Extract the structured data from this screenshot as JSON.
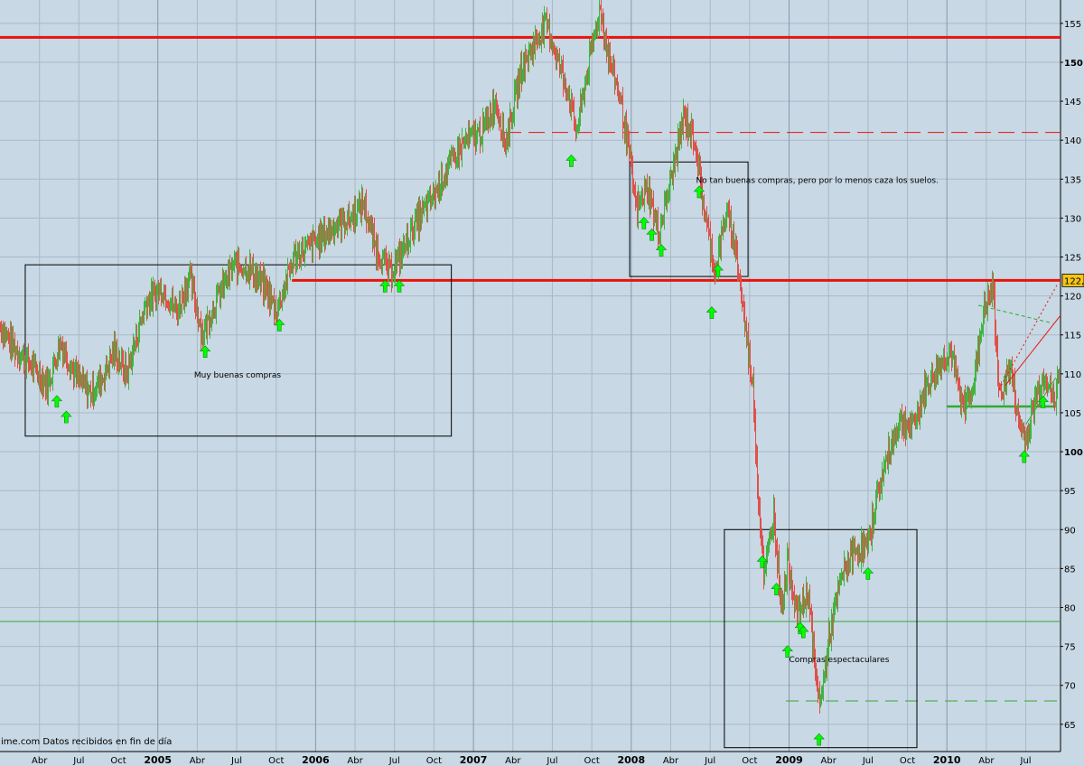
{
  "source_note": "ime.com Datos recibidos en fin de día",
  "colors": {
    "background": "#c8d8e4",
    "grid": "#a9b9c7",
    "up": "#3fb53f",
    "down": "#e0504a",
    "resistance": "#e8140c",
    "support_line": "#33a833",
    "marker": "#00ff00",
    "box": "#000000",
    "price_tag_bg": "#f5c518"
  },
  "chart_data": {
    "type": "line",
    "title": "",
    "xlabel": "",
    "ylabel": "",
    "ylim": [
      61.5,
      158
    ],
    "y_ticks": [
      65,
      70,
      75,
      80,
      85,
      90,
      95,
      100,
      105,
      110,
      115,
      120,
      125,
      130,
      135,
      140,
      145,
      150,
      155
    ],
    "x_ticks": [
      {
        "label": "Abr",
        "t": 2004.25,
        "bold": false
      },
      {
        "label": "Jul",
        "t": 2004.5,
        "bold": false
      },
      {
        "label": "Oct",
        "t": 2004.75,
        "bold": false
      },
      {
        "label": "2005",
        "t": 2005.0,
        "bold": true
      },
      {
        "label": "Abr",
        "t": 2005.25,
        "bold": false
      },
      {
        "label": "Jul",
        "t": 2005.5,
        "bold": false
      },
      {
        "label": "Oct",
        "t": 2005.75,
        "bold": false
      },
      {
        "label": "2006",
        "t": 2006.0,
        "bold": true
      },
      {
        "label": "Abr",
        "t": 2006.25,
        "bold": false
      },
      {
        "label": "Jul",
        "t": 2006.5,
        "bold": false
      },
      {
        "label": "Oct",
        "t": 2006.75,
        "bold": false
      },
      {
        "label": "2007",
        "t": 2007.0,
        "bold": true
      },
      {
        "label": "Abr",
        "t": 2007.25,
        "bold": false
      },
      {
        "label": "Jul",
        "t": 2007.5,
        "bold": false
      },
      {
        "label": "Oct",
        "t": 2007.75,
        "bold": false
      },
      {
        "label": "2008",
        "t": 2008.0,
        "bold": true
      },
      {
        "label": "Abr",
        "t": 2008.25,
        "bold": false
      },
      {
        "label": "Jul",
        "t": 2008.5,
        "bold": false
      },
      {
        "label": "Oct",
        "t": 2008.75,
        "bold": false
      },
      {
        "label": "2009",
        "t": 2009.0,
        "bold": true
      },
      {
        "label": "Abr",
        "t": 2009.25,
        "bold": false
      },
      {
        "label": "Jul",
        "t": 2009.5,
        "bold": false
      },
      {
        "label": "Oct",
        "t": 2009.75,
        "bold": false
      },
      {
        "label": "2010",
        "t": 2010.0,
        "bold": true
      },
      {
        "label": "Abr",
        "t": 2010.25,
        "bold": false
      },
      {
        "label": "Jul",
        "t": 2010.5,
        "bold": false
      }
    ],
    "x_range": [
      2004.0,
      2010.72
    ],
    "series": [
      {
        "points": [
          [
            2004.0,
            116
          ],
          [
            2004.1,
            113
          ],
          [
            2004.2,
            111
          ],
          [
            2004.3,
            108.5
          ],
          [
            2004.38,
            114
          ],
          [
            2004.47,
            110
          ],
          [
            2004.57,
            107.5
          ],
          [
            2004.65,
            109.5
          ],
          [
            2004.72,
            113
          ],
          [
            2004.8,
            110
          ],
          [
            2004.92,
            119
          ],
          [
            2005.02,
            121
          ],
          [
            2005.12,
            118
          ],
          [
            2005.2,
            122.5
          ],
          [
            2005.28,
            115
          ],
          [
            2005.38,
            120
          ],
          [
            2005.48,
            124
          ],
          [
            2005.58,
            123.5
          ],
          [
            2005.68,
            121
          ],
          [
            2005.75,
            118
          ],
          [
            2005.86,
            125
          ],
          [
            2006.0,
            127
          ],
          [
            2006.12,
            129
          ],
          [
            2006.22,
            130
          ],
          [
            2006.3,
            132
          ],
          [
            2006.38,
            126
          ],
          [
            2006.47,
            123
          ],
          [
            2006.53,
            125
          ],
          [
            2006.62,
            129
          ],
          [
            2006.75,
            133
          ],
          [
            2006.85,
            137
          ],
          [
            2006.95,
            140
          ],
          [
            2007.05,
            141
          ],
          [
            2007.14,
            145
          ],
          [
            2007.2,
            139.5
          ],
          [
            2007.3,
            149
          ],
          [
            2007.4,
            153
          ],
          [
            2007.46,
            155
          ],
          [
            2007.52,
            151
          ],
          [
            2007.6,
            146
          ],
          [
            2007.65,
            141
          ],
          [
            2007.73,
            150
          ],
          [
            2007.8,
            157
          ],
          [
            2007.85,
            151
          ],
          [
            2007.92,
            146
          ],
          [
            2007.98,
            139
          ],
          [
            2008.03,
            131
          ],
          [
            2008.1,
            134
          ],
          [
            2008.17,
            128
          ],
          [
            2008.25,
            135
          ],
          [
            2008.33,
            143
          ],
          [
            2008.4,
            140
          ],
          [
            2008.46,
            131
          ],
          [
            2008.53,
            123
          ],
          [
            2008.6,
            131
          ],
          [
            2008.66,
            126
          ],
          [
            2008.72,
            116
          ],
          [
            2008.77,
            108
          ],
          [
            2008.8,
            95
          ],
          [
            2008.84,
            84
          ],
          [
            2008.9,
            92
          ],
          [
            2008.95,
            80
          ],
          [
            2008.99,
            86
          ],
          [
            2009.05,
            79
          ],
          [
            2009.12,
            82
          ],
          [
            2009.17,
            70
          ],
          [
            2009.2,
            68
          ],
          [
            2009.25,
            76
          ],
          [
            2009.33,
            84
          ],
          [
            2009.4,
            87
          ],
          [
            2009.5,
            88
          ],
          [
            2009.55,
            94
          ],
          [
            2009.63,
            100
          ],
          [
            2009.7,
            104
          ],
          [
            2009.78,
            103
          ],
          [
            2009.86,
            108
          ],
          [
            2009.95,
            111
          ],
          [
            2010.02,
            113
          ],
          [
            2010.1,
            105.5
          ],
          [
            2010.17,
            109
          ],
          [
            2010.23,
            118
          ],
          [
            2010.29,
            121
          ],
          [
            2010.33,
            107
          ],
          [
            2010.4,
            111
          ],
          [
            2010.45,
            104
          ],
          [
            2010.5,
            101.5
          ],
          [
            2010.56,
            107
          ],
          [
            2010.62,
            110
          ],
          [
            2010.68,
            106
          ],
          [
            2010.72,
            113
          ]
        ]
      }
    ],
    "hlines": [
      {
        "y": 153.2,
        "style": "solid-red-thick",
        "from": 2004.0,
        "to": 2010.72
      },
      {
        "y": 141.0,
        "style": "dashed-red",
        "from": 2007.2,
        "to": 2010.72
      },
      {
        "y": 122.0,
        "style": "solid-red-thick",
        "from": 2005.85,
        "to": 2010.72
      },
      {
        "y": 78.2,
        "style": "thin-green",
        "from": 2004.0,
        "to": 2010.72
      },
      {
        "y": 68.0,
        "style": "dashed-green",
        "from": 2008.98,
        "to": 2010.72
      },
      {
        "y": 105.8,
        "style": "solid-green-thick",
        "from": 2010.0,
        "to": 2010.69
      }
    ],
    "trend_lines": [
      {
        "from": [
          2010.2,
          118.8
        ],
        "to": [
          2010.67,
          116.5
        ],
        "style": "dashed-green-thin"
      },
      {
        "from": [
          2010.33,
          108
        ],
        "to": [
          2010.7,
          121.5
        ],
        "style": "dotted-red"
      },
      {
        "from": [
          2010.37,
          108.5
        ],
        "to": [
          2010.72,
          117.5
        ],
        "style": "solid-red-thin"
      },
      {
        "from": [
          2010.5,
          103.5
        ],
        "to": [
          2010.69,
          109.5
        ],
        "style": "solid-green-thin"
      }
    ],
    "boxes": [
      {
        "t0": 2004.16,
        "t1": 2006.86,
        "y_top": 124.0,
        "y_bottom": 102.0
      },
      {
        "t0": 2007.99,
        "t1": 2008.74,
        "y_top": 137.2,
        "y_bottom": 122.5
      },
      {
        "t0": 2008.59,
        "t1": 2009.81,
        "y_top": 90.0,
        "y_bottom": 62.0
      }
    ],
    "annotations": [
      {
        "text": "Muy buenas compras",
        "t": 2005.23,
        "y": 109.5
      },
      {
        "text": "No tan buenas compras, pero por lo menos caza los suelos.",
        "t": 2008.41,
        "y": 134.5
      },
      {
        "text": "Compras espectaculares",
        "t": 2009.0,
        "y": 73.0
      }
    ],
    "markers": [
      {
        "t": 2004.36,
        "y": 106.4
      },
      {
        "t": 2004.42,
        "y": 104.4
      },
      {
        "t": 2005.3,
        "y": 112.8
      },
      {
        "t": 2005.77,
        "y": 116.2
      },
      {
        "t": 2006.44,
        "y": 121.2
      },
      {
        "t": 2006.53,
        "y": 121.2
      },
      {
        "t": 2007.62,
        "y": 137.3
      },
      {
        "t": 2008.08,
        "y": 129.3
      },
      {
        "t": 2008.13,
        "y": 127.8
      },
      {
        "t": 2008.19,
        "y": 125.8
      },
      {
        "t": 2008.43,
        "y": 133.3
      },
      {
        "t": 2008.51,
        "y": 117.8
      },
      {
        "t": 2008.55,
        "y": 123.2
      },
      {
        "t": 2008.83,
        "y": 85.8
      },
      {
        "t": 2008.92,
        "y": 82.3
      },
      {
        "t": 2008.99,
        "y": 74.3
      },
      {
        "t": 2009.07,
        "y": 77.3
      },
      {
        "t": 2009.09,
        "y": 76.8
      },
      {
        "t": 2009.19,
        "y": 63.0
      },
      {
        "t": 2009.5,
        "y": 84.3
      },
      {
        "t": 2010.49,
        "y": 99.3
      },
      {
        "t": 2010.61,
        "y": 106.3
      }
    ],
    "last_price_label": "122,"
  }
}
